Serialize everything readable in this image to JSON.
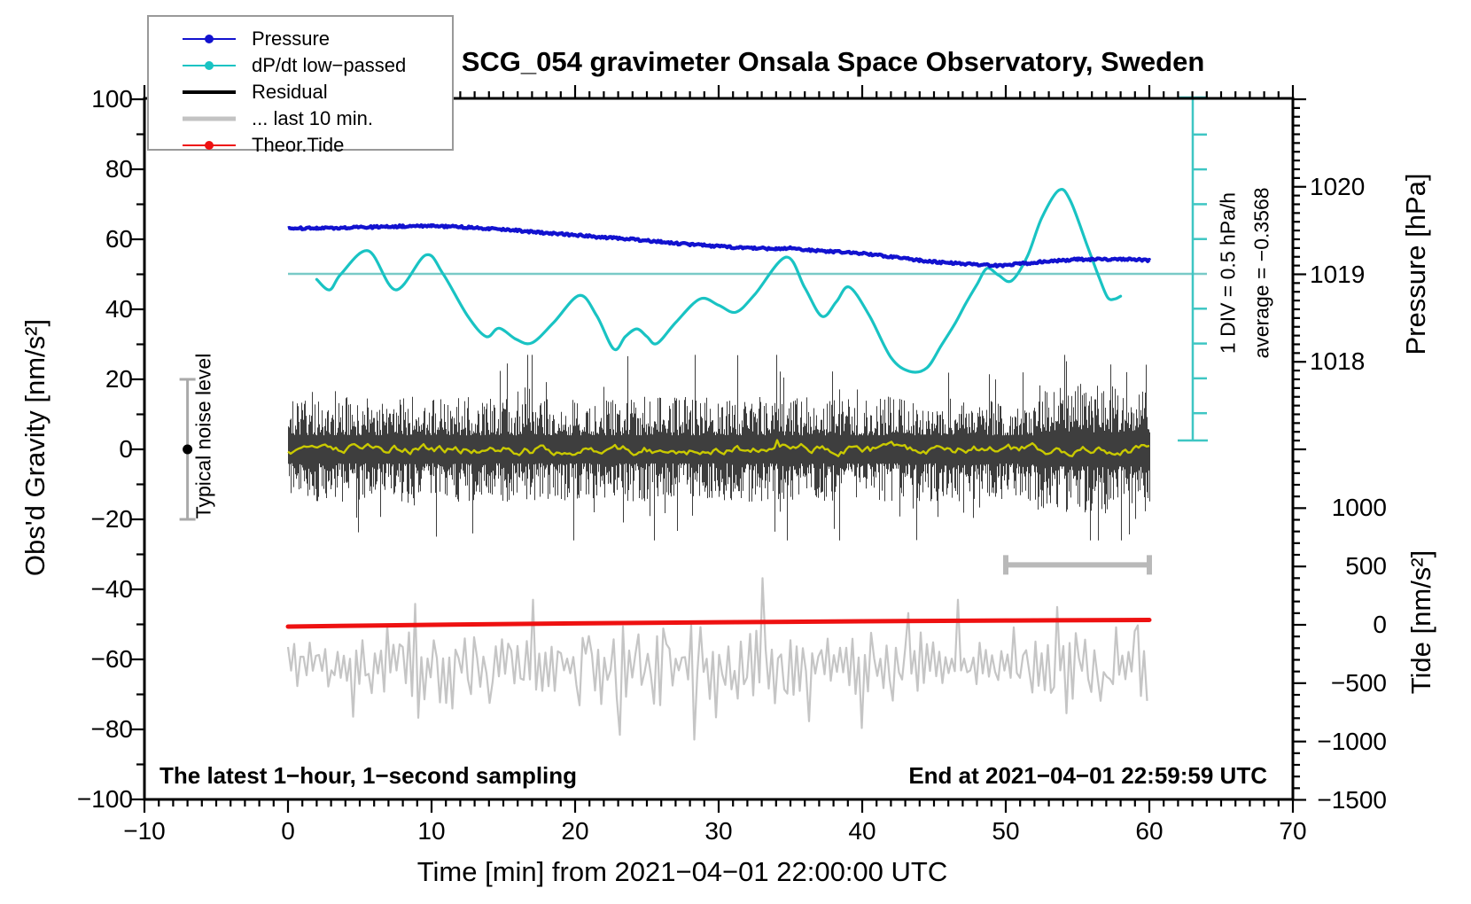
{
  "title": "SCG_054 gravimeter Onsala Space Observatory, Sweden",
  "annotations": {
    "bottom_left": "The latest 1−hour, 1−second sampling",
    "bottom_right": "End at 2021−04−01 22:59:59 UTC",
    "noise_bar_label": "Typical noise level",
    "ruler_div_label": "1 DIV = 0.5 hPa/h",
    "ruler_average_label": "average = −0.3568"
  },
  "legend": {
    "items": [
      {
        "label": "Pressure",
        "color": "#1212cf",
        "marker": "dot",
        "width": 2
      },
      {
        "label": "dP/dt low−passed",
        "color": "#19c3c3",
        "marker": "dot",
        "width": 2
      },
      {
        "label": "Residual",
        "color": "#000000",
        "marker": "none",
        "width": 4
      },
      {
        "label": "... last 10 min.",
        "color": "#c3c3c3",
        "marker": "none",
        "width": 5
      },
      {
        "label": "Theor.Tide",
        "color": "#ee1111",
        "marker": "dot",
        "width": 2
      }
    ]
  },
  "colors": {
    "pressure": "#1212cf",
    "dpdt": "#19c3c3",
    "dpdt_zero_line": "#79cac7",
    "ruler": "#3ec6c3",
    "residual": "#0a0a0a",
    "residual_smoothed": "#c9c900",
    "last10": "#c5c5c5",
    "theor_tide": "#ee1111",
    "noise_bar": "#a9a9a9",
    "bracket": "#b9b9b9"
  },
  "chart_data": {
    "type": "line",
    "x_axis": {
      "label": "Time [min] from 2021−04−01 22:00:00 UTC",
      "range": [
        -10,
        70
      ],
      "major_tick": 10,
      "minor_tick": 1,
      "ticks": [
        {
          "v": -10,
          "label": "−10"
        },
        {
          "v": 0,
          "label": "0"
        },
        {
          "v": 10,
          "label": "10"
        },
        {
          "v": 20,
          "label": "20"
        },
        {
          "v": 30,
          "label": "30"
        },
        {
          "v": 40,
          "label": "40"
        },
        {
          "v": 50,
          "label": "50"
        },
        {
          "v": 60,
          "label": "60"
        },
        {
          "v": 70,
          "label": "70"
        }
      ]
    },
    "y_axis_gravity": {
      "label": "Obs'd Gravity [nm/s²]",
      "range": [
        -100,
        100
      ],
      "major_tick": 20,
      "minor_tick": 10,
      "ticks": [
        {
          "v": 100,
          "label": "100"
        },
        {
          "v": 80,
          "label": "80"
        },
        {
          "v": 60,
          "label": "60"
        },
        {
          "v": 40,
          "label": "40"
        },
        {
          "v": 20,
          "label": "20"
        },
        {
          "v": 0,
          "label": "0"
        },
        {
          "v": -20,
          "label": "−20"
        },
        {
          "v": -40,
          "label": "−40"
        },
        {
          "v": -60,
          "label": "−60"
        },
        {
          "v": -80,
          "label": "−80"
        },
        {
          "v": -100,
          "label": "−100"
        }
      ]
    },
    "y_axis_pressure": {
      "label": "Pressure [hPa]",
      "range": [
        1017,
        1021
      ],
      "major_tick": 1,
      "minor_tick": 0.1,
      "ticks": [
        {
          "v": 1020,
          "label": "1020"
        },
        {
          "v": 1019,
          "label": "1019"
        },
        {
          "v": 1018,
          "label": "1018"
        }
      ]
    },
    "y_axis_tide": {
      "label": "Tide [nm/s²]",
      "range": [
        -1500,
        1500
      ],
      "major_tick": 500,
      "minor_tick": 100,
      "ticks": [
        {
          "v": 1000,
          "label": "1000"
        },
        {
          "v": 500,
          "label": "500"
        },
        {
          "v": 0,
          "label": "0"
        },
        {
          "v": -500,
          "label": "−500"
        },
        {
          "v": -1000,
          "label": "−1000"
        },
        {
          "v": -1500,
          "label": "−1500"
        }
      ]
    },
    "dpdt_ruler": {
      "div_hpa_per_h": 0.5,
      "average_hpa_per_h": -0.3568,
      "zero_at_gravity": 50,
      "divs_above_zero": 4,
      "divs_below_zero": 4
    },
    "noise_bar": {
      "t": -7,
      "gravity_range": [
        -20,
        20
      ],
      "dot_at": 0
    },
    "last10_bracket": {
      "t_range": [
        50,
        60
      ],
      "gravity_level": -33
    },
    "series": [
      {
        "name": "Pressure",
        "unit": "hPa",
        "axis": "pressure",
        "points": [
          [
            0,
            1019.52
          ],
          [
            2,
            1019.53
          ],
          [
            4,
            1019.53
          ],
          [
            6,
            1019.54
          ],
          [
            8,
            1019.55
          ],
          [
            10,
            1019.55
          ],
          [
            12,
            1019.54
          ],
          [
            14,
            1019.52
          ],
          [
            16,
            1019.5
          ],
          [
            18,
            1019.47
          ],
          [
            20,
            1019.45
          ],
          [
            22,
            1019.42
          ],
          [
            24,
            1019.4
          ],
          [
            26,
            1019.37
          ],
          [
            28,
            1019.34
          ],
          [
            30,
            1019.32
          ],
          [
            32,
            1019.3
          ],
          [
            34,
            1019.29
          ],
          [
            35,
            1019.3
          ],
          [
            36,
            1019.28
          ],
          [
            38,
            1019.26
          ],
          [
            40,
            1019.24
          ],
          [
            42,
            1019.2
          ],
          [
            44,
            1019.16
          ],
          [
            46,
            1019.13
          ],
          [
            48,
            1019.11
          ],
          [
            49.5,
            1019.1
          ],
          [
            51,
            1019.12
          ],
          [
            53,
            1019.15
          ],
          [
            55,
            1019.17
          ],
          [
            57,
            1019.17
          ],
          [
            59,
            1019.17
          ],
          [
            60,
            1019.16
          ]
        ]
      },
      {
        "name": "dP/dt low−passed",
        "unit": "hPa/h",
        "axis": "dpdt",
        "points": [
          [
            2,
            -0.08
          ],
          [
            2.9,
            -0.23
          ],
          [
            3.7,
            0.0
          ],
          [
            5.6,
            0.33
          ],
          [
            7.5,
            -0.23
          ],
          [
            9.6,
            0.27
          ],
          [
            10.8,
            0.0
          ],
          [
            12.5,
            -0.6
          ],
          [
            13.8,
            -0.9
          ],
          [
            14.7,
            -0.78
          ],
          [
            15.9,
            -0.94
          ],
          [
            17,
            -0.99
          ],
          [
            18.5,
            -0.7
          ],
          [
            20.3,
            -0.31
          ],
          [
            21.5,
            -0.6
          ],
          [
            22.7,
            -1.08
          ],
          [
            23.5,
            -0.9
          ],
          [
            24.3,
            -0.79
          ],
          [
            25,
            -0.9
          ],
          [
            25.7,
            -1.0
          ],
          [
            27,
            -0.7
          ],
          [
            28.7,
            -0.36
          ],
          [
            30,
            -0.45
          ],
          [
            31.2,
            -0.55
          ],
          [
            32.5,
            -0.3
          ],
          [
            34.7,
            0.24
          ],
          [
            36,
            -0.2
          ],
          [
            37.2,
            -0.61
          ],
          [
            38.2,
            -0.4
          ],
          [
            39.1,
            -0.19
          ],
          [
            40.5,
            -0.6
          ],
          [
            42,
            -1.2
          ],
          [
            43.3,
            -1.4
          ],
          [
            44.5,
            -1.35
          ],
          [
            45.5,
            -1.03
          ],
          [
            46.5,
            -0.7
          ],
          [
            47.2,
            -0.43
          ],
          [
            48,
            -0.15
          ],
          [
            48.7,
            0.08
          ],
          [
            49.5,
            -0.02
          ],
          [
            50.4,
            -0.1
          ],
          [
            51.5,
            0.25
          ],
          [
            52.5,
            0.8
          ],
          [
            53.7,
            1.2
          ],
          [
            54.5,
            1.05
          ],
          [
            55.7,
            0.39
          ],
          [
            56.5,
            -0.05
          ],
          [
            57.1,
            -0.34
          ],
          [
            57.6,
            -0.36
          ],
          [
            58,
            -0.32
          ]
        ]
      },
      {
        "name": "Residual",
        "unit": "nm/s²",
        "axis": "gravity",
        "kind": "noise-band",
        "time_range": [
          0,
          60
        ],
        "mean": 0,
        "typical_range": 12,
        "max_spike": 27,
        "sampling": "1 s"
      },
      {
        "name": "Residual smoothed",
        "unit": "nm/s²",
        "axis": "gravity",
        "kind": "noise-line",
        "time_range": [
          0,
          60
        ],
        "mean": 0,
        "amplitude": 1.5
      },
      {
        "name": "... last 10 min.",
        "unit": "nm/s²",
        "axis": "tide",
        "kind": "noise-line",
        "time_range": [
          0,
          60
        ],
        "center": -340,
        "typical_range": 300,
        "max_spike": 590
      },
      {
        "name": "Theor.Tide",
        "unit": "nm/s²",
        "axis": "tide",
        "points": [
          [
            0,
            -15
          ],
          [
            10,
            0
          ],
          [
            20,
            12
          ],
          [
            30,
            22
          ],
          [
            40,
            30
          ],
          [
            50,
            37
          ],
          [
            60,
            42
          ]
        ]
      }
    ]
  }
}
